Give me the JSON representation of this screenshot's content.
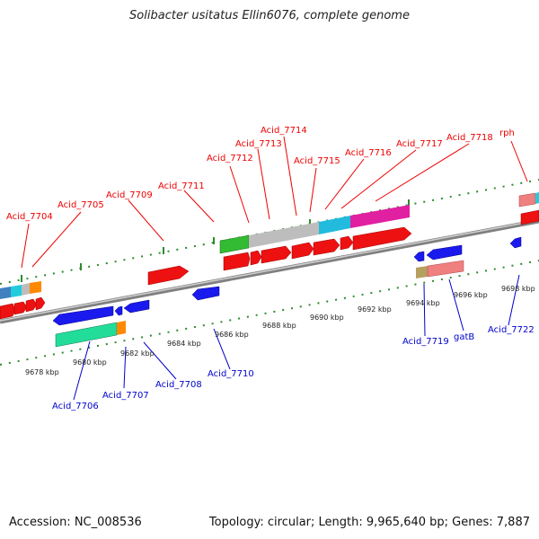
{
  "title": "Solibacter usitatus Ellin6076, complete genome",
  "footer": {
    "accession": "Accession: NC_008536",
    "summary": "Topology: circular; Length: 9,965,640 bp; Genes: 7,887"
  },
  "colors": {
    "forward_label": "#ee0000",
    "reverse_label": "#0000cc",
    "backbone": "#808080",
    "tick": "#2e8b2e"
  },
  "forward_genes": [
    "Acid_7704",
    "Acid_7705",
    "Acid_7709",
    "Acid_7711",
    "Acid_7712",
    "Acid_7713",
    "Acid_7714",
    "Acid_7715",
    "Acid_7716",
    "Acid_7717",
    "Acid_7718",
    "rph"
  ],
  "reverse_genes": [
    "Acid_7706",
    "Acid_7707",
    "Acid_7708",
    "Acid_7710",
    "Acid_7719",
    "gatB",
    "Acid_7722"
  ],
  "scale_labels": [
    "9678 kbp",
    "9680 kbp",
    "9682 kbp",
    "9684 kbp",
    "9686 kbp",
    "9688 kbp",
    "9690 kbp",
    "9692 kbp",
    "9694 kbp",
    "9696 kbp",
    "9698 kbp"
  ]
}
